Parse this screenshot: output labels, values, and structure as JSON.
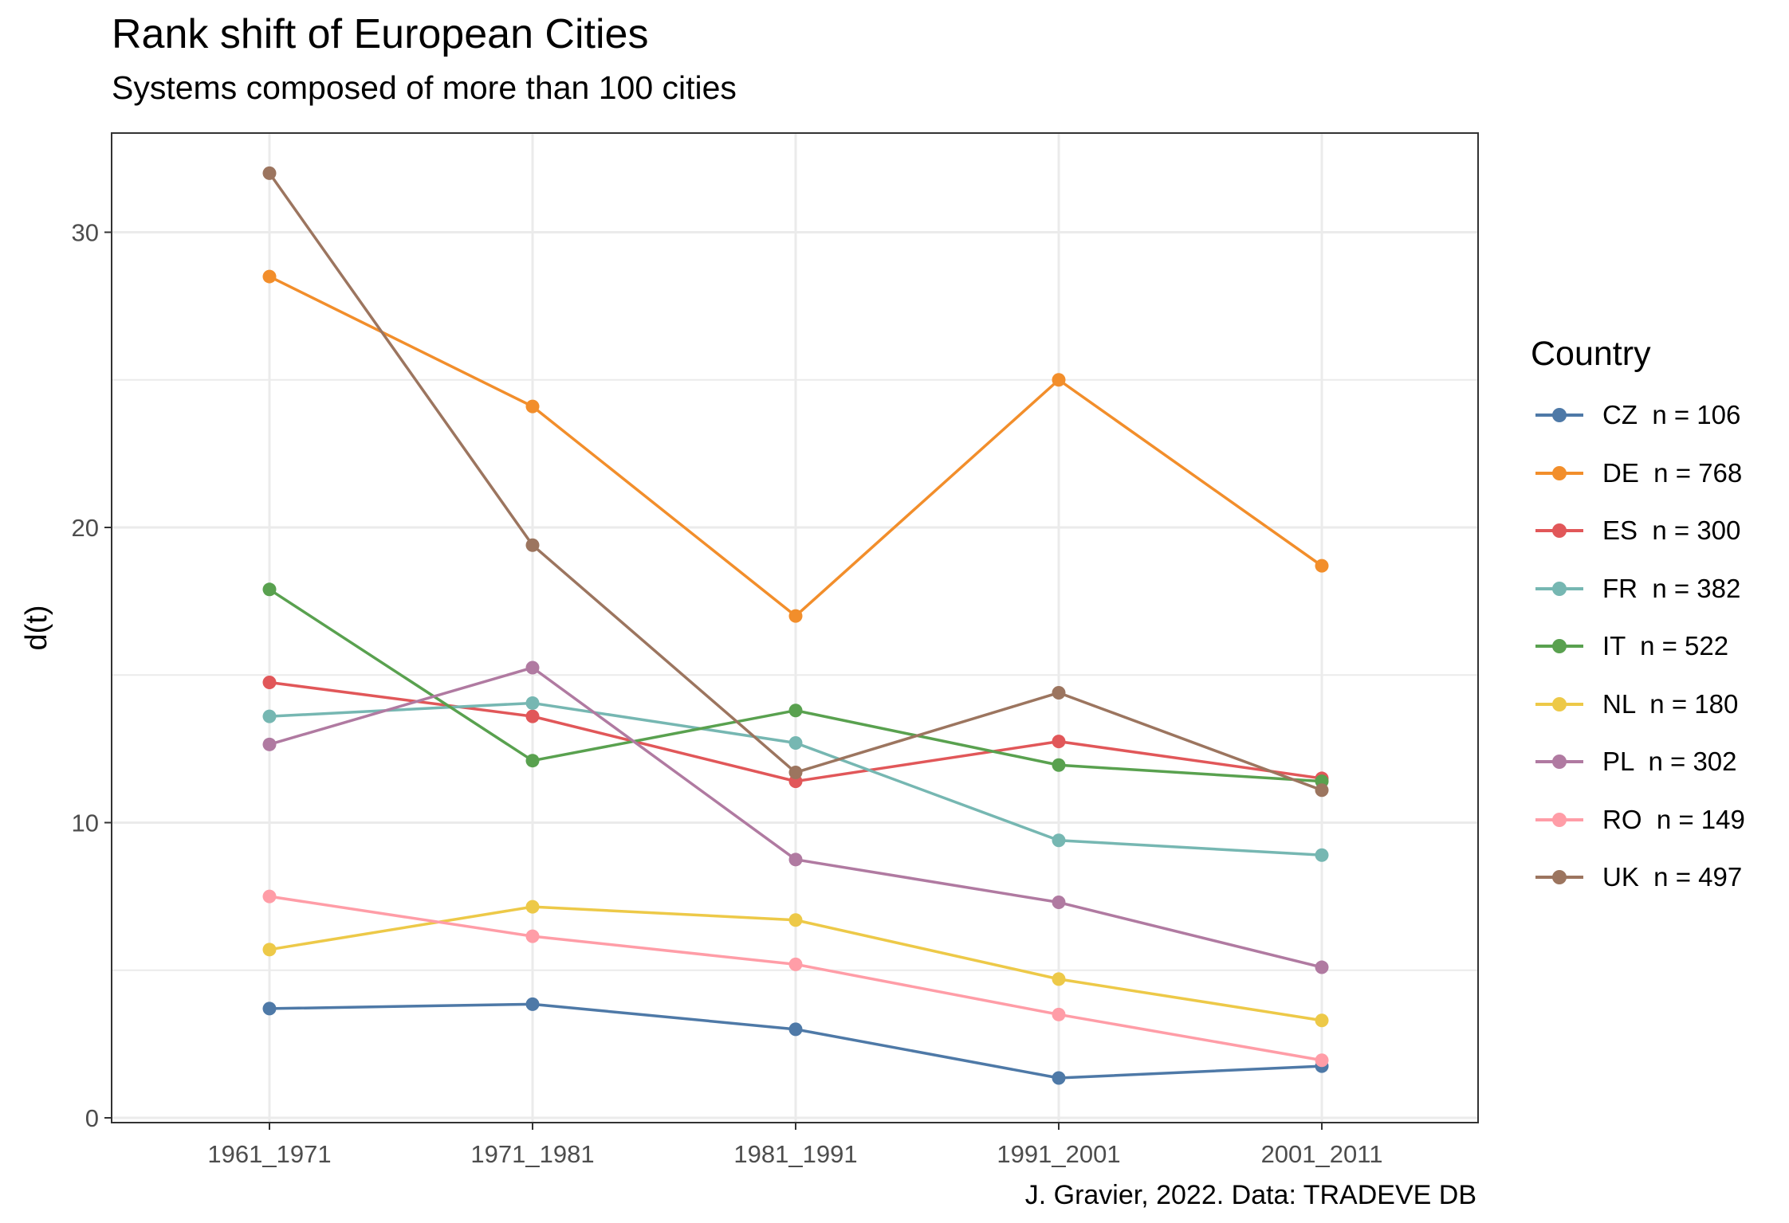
{
  "chart_data": {
    "type": "line",
    "title": "Rank shift of European Cities",
    "subtitle": "Systems composed of more than 100 cities",
    "caption": "J. Gravier, 2022. Data: TRADEVE DB",
    "xlabel": "",
    "ylabel": "d(t)",
    "legend_title": "Country",
    "legend_position": "right",
    "grid": true,
    "x": [
      "1961_1971",
      "1971_1981",
      "1981_1991",
      "1991_2001",
      "2001_2011"
    ],
    "ylim": [
      0,
      32
    ],
    "yticks": [
      0,
      10,
      20,
      30
    ],
    "series": [
      {
        "name": "CZ  n = 106",
        "color": "#4E79A7",
        "values": [
          3.7,
          3.85,
          3.0,
          1.35,
          1.75
        ]
      },
      {
        "name": "DE  n = 768",
        "color": "#F28E2B",
        "values": [
          28.5,
          24.1,
          17.0,
          25.0,
          18.7
        ]
      },
      {
        "name": "ES  n = 300",
        "color": "#E15759",
        "values": [
          14.75,
          13.6,
          11.4,
          12.75,
          11.5
        ]
      },
      {
        "name": "FR  n = 382",
        "color": "#76B7B2",
        "values": [
          13.6,
          14.05,
          12.7,
          9.4,
          8.9
        ]
      },
      {
        "name": "IT  n = 522",
        "color": "#59A14F",
        "values": [
          17.9,
          12.1,
          13.8,
          11.95,
          11.4
        ]
      },
      {
        "name": "NL  n = 180",
        "color": "#EDC948",
        "values": [
          5.7,
          7.15,
          6.7,
          4.7,
          3.3
        ]
      },
      {
        "name": "PL  n = 302",
        "color": "#B07AA1",
        "values": [
          12.65,
          15.25,
          8.75,
          7.3,
          5.1
        ]
      },
      {
        "name": "RO  n = 149",
        "color": "#FF9DA7",
        "values": [
          7.5,
          6.15,
          5.2,
          3.5,
          1.95
        ]
      },
      {
        "name": "UK  n = 497",
        "color": "#9C755F",
        "values": [
          32.0,
          19.4,
          11.7,
          14.4,
          11.1
        ]
      }
    ]
  }
}
